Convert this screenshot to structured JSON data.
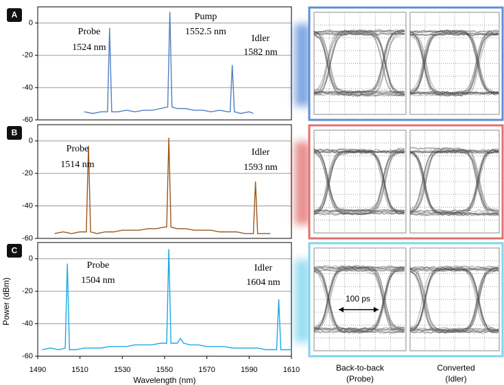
{
  "chart_data": [
    {
      "type": "line",
      "label": "A",
      "color": "#4f7fc0",
      "x": [
        1512,
        1516,
        1520,
        1523,
        1524,
        1525,
        1528,
        1532,
        1536,
        1540,
        1544,
        1548,
        1551.5,
        1552.5,
        1553.5,
        1556,
        1560,
        1564,
        1568,
        1572,
        1576,
        1580,
        1581,
        1582,
        1583,
        1586,
        1590,
        1592
      ],
      "values": [
        -55,
        -56,
        -55,
        -55,
        -3,
        -55,
        -55,
        -54,
        -55,
        -54,
        -54,
        -53,
        -52,
        7,
        -52,
        -53,
        -53,
        -54,
        -54,
        -55,
        -54,
        -55,
        -55,
        -26,
        -55,
        -56,
        -55,
        -56
      ],
      "xlim": [
        1490,
        1610
      ],
      "ylim": [
        -60,
        10
      ],
      "yticks": [
        0,
        -20,
        -40,
        -60
      ],
      "grid": true,
      "annotations": [
        [
          "Probe",
          "1524 nm"
        ],
        [
          "Pump",
          "1552.5 nm"
        ],
        [
          "Idler",
          "1582 nm"
        ]
      ]
    },
    {
      "type": "line",
      "label": "B",
      "color": "#9a561c",
      "x": [
        1498,
        1502,
        1506,
        1510,
        1513,
        1514,
        1515,
        1518,
        1522,
        1526,
        1530,
        1534,
        1538,
        1542,
        1546,
        1550,
        1551,
        1552,
        1553,
        1556,
        1560,
        1564,
        1568,
        1572,
        1576,
        1580,
        1584,
        1588,
        1592,
        1593,
        1594,
        1597,
        1600
      ],
      "values": [
        -57,
        -56,
        -57,
        -56,
        -56,
        -3,
        -56,
        -57,
        -56,
        -56,
        -55,
        -55,
        -55,
        -54,
        -54,
        -53,
        -53,
        2,
        -53,
        -54,
        -54,
        -55,
        -55,
        -55,
        -56,
        -56,
        -56,
        -57,
        -57,
        -25,
        -57,
        -57,
        -57
      ],
      "xlim": [
        1490,
        1610
      ],
      "ylim": [
        -60,
        10
      ],
      "yticks": [
        0,
        -20,
        -40,
        -60
      ],
      "grid": true,
      "annotations": [
        [
          "Probe",
          "1514 nm"
        ],
        [
          "Idler",
          "1593 nm"
        ]
      ]
    },
    {
      "type": "line",
      "label": "C",
      "color": "#1aa9e2",
      "x": [
        1492,
        1496,
        1500,
        1503,
        1504,
        1505,
        1508,
        1512,
        1516,
        1520,
        1524,
        1528,
        1532,
        1536,
        1540,
        1544,
        1548,
        1551,
        1552,
        1553,
        1556,
        1557.5,
        1559,
        1562,
        1566,
        1570,
        1574,
        1578,
        1582,
        1586,
        1590,
        1594,
        1598,
        1602,
        1603,
        1604,
        1605,
        1608,
        1610
      ],
      "values": [
        -56,
        -55,
        -56,
        -55,
        -3,
        -56,
        -56,
        -55,
        -55,
        -55,
        -54,
        -54,
        -54,
        -53,
        -53,
        -53,
        -52,
        -52,
        6,
        -52,
        -52,
        -49,
        -52,
        -53,
        -53,
        -54,
        -54,
        -54,
        -55,
        -55,
        -55,
        -55,
        -56,
        -56,
        -56,
        -25,
        -56,
        -56,
        -56
      ],
      "xlim": [
        1490,
        1610
      ],
      "ylim": [
        -60,
        10
      ],
      "yticks": [
        0,
        -20,
        -40,
        -60
      ],
      "xticks": [
        1490,
        1510,
        1530,
        1550,
        1570,
        1590,
        1610
      ],
      "grid": true,
      "xlabel": "Wavelength (nm)",
      "ylabel": "Power (dBm)",
      "annotations": [
        [
          "Probe",
          "1504 nm"
        ],
        [
          "Idler",
          "1604 nm"
        ]
      ]
    }
  ],
  "eye_panels": {
    "captions": [
      [
        "Back-to-back",
        "(Probe)"
      ],
      [
        "Converted",
        "(Idler)"
      ]
    ],
    "marker": "100 ps"
  }
}
